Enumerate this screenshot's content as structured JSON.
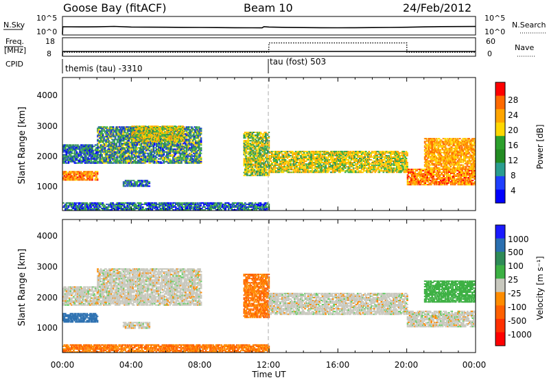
{
  "header": {
    "station": "Goose Bay (fitACF)",
    "beam": "Beam 10",
    "date": "24/Feb/2012"
  },
  "panels": {
    "noise": {
      "left_label": "N.Sky",
      "right_label": "N.Search",
      "left_ticks": [
        "10^5",
        "10^0"
      ],
      "right_ticks": [
        "10^5",
        "10^0"
      ]
    },
    "freq": {
      "left_label_1": "Freq.",
      "left_label_2": "[MHz]",
      "right_label": "Nave",
      "left_ticks": [
        "18",
        "8"
      ],
      "right_ticks": [
        "60",
        "0"
      ]
    },
    "cpid": {
      "label": "CPID",
      "modes": [
        "themis (tau) -3310",
        "tau (fost) 503"
      ]
    }
  },
  "colorbars": {
    "power": {
      "title": "Power [dB]",
      "ticks": [
        "28",
        "24",
        "20",
        "16",
        "12",
        "8",
        "4"
      ],
      "colors": [
        "#ff0000",
        "#ff6a00",
        "#ffa500",
        "#ffd700",
        "#2ca02c",
        "#228b22",
        "#2a9d8f",
        "#1f3fff",
        "#0000ff"
      ]
    },
    "velocity": {
      "title": "Velocity [m s⁻¹]",
      "ticks": [
        "1000",
        "500",
        "100",
        "25",
        "-25",
        "-100",
        "-500",
        "-1000"
      ],
      "colors": [
        "#1a1aff",
        "#2a6fb0",
        "#2e8b57",
        "#3cb043",
        "#c8c8be",
        "#ff8c00",
        "#ff6000",
        "#ff3000",
        "#ff0000"
      ]
    }
  },
  "chart_data": [
    {
      "type": "line",
      "title": "N.Sky / N.Search",
      "x_range": [
        "00:00",
        "24:00"
      ],
      "yscale": "log",
      "ylim": [
        "10^0",
        "10^5"
      ],
      "series": [
        {
          "name": "N.Sky",
          "x": [
            0,
            0.02,
            1,
            2,
            3,
            4,
            5,
            6,
            7,
            8,
            9,
            10,
            11,
            11.6,
            11.7,
            12,
            13,
            14,
            15,
            16,
            17,
            18,
            19,
            20,
            21,
            22,
            23,
            24
          ],
          "values": [
            1,
            200,
            180,
            190,
            250,
            160,
            150,
            140,
            130,
            120,
            110,
            100,
            95,
            90,
            200,
            160,
            130,
            110,
            100,
            95,
            100,
            110,
            120,
            140,
            180,
            220,
            230,
            240
          ]
        }
      ]
    },
    {
      "type": "line",
      "title": "Freq / Nave",
      "x_range": [
        "00:00",
        "24:00"
      ],
      "series": [
        {
          "name": "Freq.",
          "x": [
            0,
            0.02,
            12,
            12.01,
            20,
            20.01,
            24
          ],
          "values": [
            8,
            10.5,
            10.5,
            10.5,
            10.5,
            10.5,
            10.5
          ]
        },
        {
          "name": "Nave",
          "x": [
            0,
            0.02,
            11.98,
            12,
            20,
            20.01,
            24
          ],
          "values": [
            0,
            12,
            12,
            46,
            46,
            12,
            12
          ]
        }
      ]
    },
    {
      "type": "heatmap",
      "title": "Power [dB]",
      "xlabel": "",
      "ylabel": "Slant Range [km]",
      "x_ticks": [
        "00:00",
        "04:00",
        "08:00",
        "12:00",
        "16:00",
        "20:00",
        "00:00"
      ],
      "y_ticks": [
        1000,
        2000,
        3000,
        4000
      ],
      "ylim": [
        180,
        4500
      ],
      "regions": [
        {
          "x": [
            0,
            2
          ],
          "y": [
            1150,
            1450
          ],
          "value": 22
        },
        {
          "x": [
            0,
            2
          ],
          "y": [
            1700,
            2300
          ],
          "value": 8
        },
        {
          "x": [
            2,
            8
          ],
          "y": [
            1700,
            2900
          ],
          "value": 10
        },
        {
          "x": [
            4,
            7
          ],
          "y": [
            2400,
            2900
          ],
          "value": 16
        },
        {
          "x": [
            3.5,
            5
          ],
          "y": [
            950,
            1150
          ],
          "value": 8
        },
        {
          "x": [
            10.5,
            12
          ],
          "y": [
            1300,
            2700
          ],
          "value": 14
        },
        {
          "x": [
            12,
            20
          ],
          "y": [
            1400,
            2100
          ],
          "value": 16
        },
        {
          "x": [
            20,
            24
          ],
          "y": [
            1000,
            1500
          ],
          "value": 22
        },
        {
          "x": [
            21,
            24
          ],
          "y": [
            1500,
            2500
          ],
          "value": 20
        },
        {
          "x": [
            0,
            12
          ],
          "y": [
            180,
            450
          ],
          "value": 8
        }
      ]
    },
    {
      "type": "heatmap",
      "title": "Velocity [m s⁻¹]",
      "xlabel": "Time UT",
      "ylabel": "Slant Range [km]",
      "x_ticks": [
        "00:00",
        "04:00",
        "08:00",
        "12:00",
        "16:00",
        "20:00",
        "00:00"
      ],
      "y_ticks": [
        1000,
        2000,
        3000,
        4000
      ],
      "ylim": [
        180,
        4500
      ],
      "regions": [
        {
          "x": [
            0,
            2
          ],
          "y": [
            1150,
            1450
          ],
          "value": 500
        },
        {
          "x": [
            0,
            2
          ],
          "y": [
            1700,
            2300
          ],
          "value": 0
        },
        {
          "x": [
            2,
            8
          ],
          "y": [
            1700,
            2900
          ],
          "value": 0
        },
        {
          "x": [
            3.5,
            5
          ],
          "y": [
            950,
            1150
          ],
          "value": 0
        },
        {
          "x": [
            10.5,
            12
          ],
          "y": [
            1300,
            2700
          ],
          "value": -100
        },
        {
          "x": [
            12,
            20
          ],
          "y": [
            1400,
            2100
          ],
          "value": 0
        },
        {
          "x": [
            20,
            24
          ],
          "y": [
            1000,
            1500
          ],
          "value": 0
        },
        {
          "x": [
            21,
            24
          ],
          "y": [
            1800,
            2500
          ],
          "value": 100
        },
        {
          "x": [
            0,
            12
          ],
          "y": [
            180,
            450
          ],
          "value": -100
        }
      ]
    }
  ],
  "axis": {
    "x_title": "Time UT",
    "x_ticks": [
      "00:00",
      "04:00",
      "08:00",
      "12:00",
      "16:00",
      "20:00",
      "00:00"
    ],
    "y_title": "Slant Range [km]",
    "y_ticks": [
      "4000",
      "3000",
      "2000",
      "1000"
    ]
  }
}
